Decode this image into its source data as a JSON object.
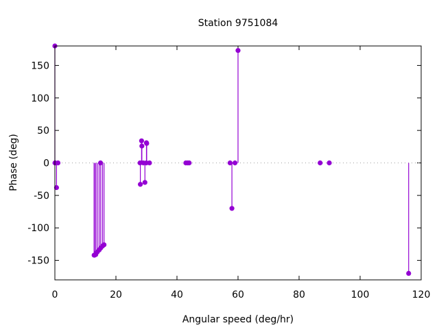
{
  "chart_data": {
    "type": "scatter",
    "style": "impulses-with-points",
    "title": "Station 9751084",
    "xlabel": "Angular speed (deg/hr)",
    "ylabel": "Phase (deg)",
    "xlim": [
      0,
      120
    ],
    "ylim": [
      -180,
      180
    ],
    "xticks": [
      0,
      20,
      40,
      60,
      80,
      100,
      120
    ],
    "yticks": [
      -150,
      -100,
      -50,
      0,
      50,
      100,
      150
    ],
    "zero_line": true,
    "color": "#9400d3",
    "series": [
      {
        "name": "phase",
        "x": [
          0,
          0.04,
          0.08,
          0.54,
          1.02,
          12.85,
          13.0,
          13.4,
          13.9,
          14.5,
          14.96,
          15.0,
          15.6,
          16.1,
          27.9,
          28.0,
          28.4,
          28.5,
          28.98,
          29.5,
          29.96,
          30.0,
          30.08,
          31.0,
          42.9,
          43.5,
          44.0,
          57.4,
          58.0,
          59.0,
          60.0,
          86.9,
          89.9,
          115.9
        ],
        "y": [
          180,
          0,
          0,
          -38,
          0,
          -142,
          -142,
          -141,
          -137,
          -134,
          0,
          -131,
          -128,
          -126,
          0,
          -33,
          34,
          26,
          0,
          -30,
          0,
          31,
          30,
          0,
          0,
          0,
          0,
          0,
          -70,
          0,
          173,
          0,
          0,
          -170
        ]
      }
    ]
  }
}
